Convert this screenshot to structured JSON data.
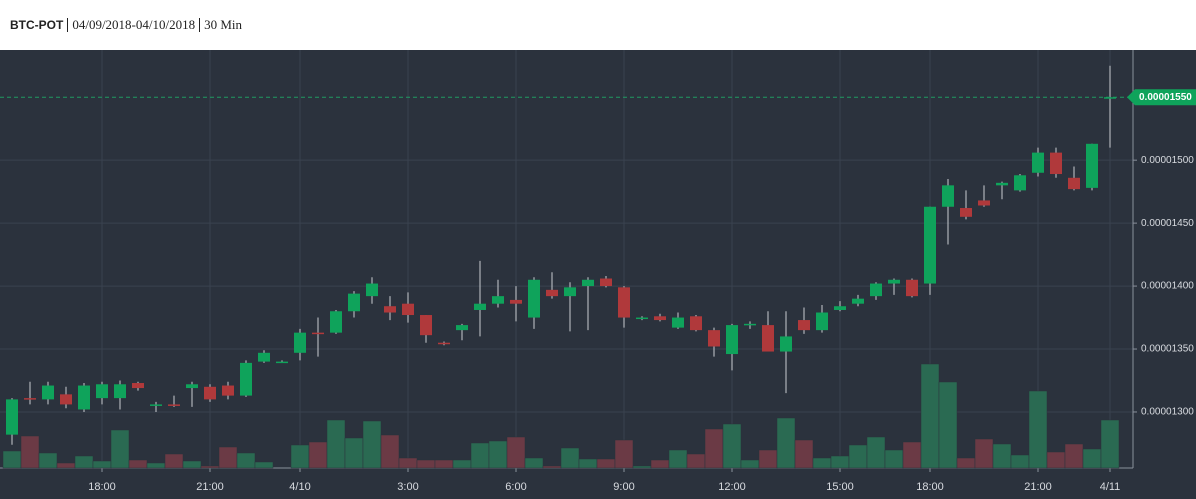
{
  "header": {
    "symbol": "BTC-POT",
    "date_range": "04/09/2018-04/10/2018",
    "interval": "30 Min"
  },
  "chart_data": {
    "type": "candlestick",
    "categories": [
      null,
      null,
      null,
      null,
      null,
      "18:00",
      null,
      null,
      null,
      null,
      null,
      "21:00",
      null,
      null,
      null,
      null,
      "4/10",
      null,
      null,
      null,
      null,
      null,
      "3:00",
      null,
      null,
      null,
      null,
      null,
      "6:00",
      null,
      null,
      null,
      null,
      null,
      "9:00",
      null,
      null,
      null,
      null,
      null,
      "12:00",
      null,
      null,
      null,
      null,
      null,
      "15:00",
      null,
      null,
      null,
      null,
      "18:00",
      null,
      null,
      null,
      null,
      null,
      "21:00",
      null,
      null,
      null,
      "4/11"
    ],
    "open": [
      1.282e-05,
      1.311e-05,
      1.31e-05,
      1.314e-05,
      1.302e-05,
      1.311e-05,
      1.311e-05,
      1.323e-05,
      1.305e-05,
      1.306e-05,
      1.319e-05,
      1.32e-05,
      1.321e-05,
      1.313e-05,
      1.34e-05,
      1.34e-05,
      1.347e-05,
      1.363e-05,
      1.363e-05,
      1.38e-05,
      1.392e-05,
      1.384e-05,
      1.386e-05,
      1.377e-05,
      1.355e-05,
      1.365e-05,
      1.381e-05,
      1.386e-05,
      1.389e-05,
      1.375e-05,
      1.397e-05,
      1.392e-05,
      1.4e-05,
      1.406e-05,
      1.399e-05,
      1.374e-05,
      1.376e-05,
      1.367e-05,
      1.376e-05,
      1.365e-05,
      1.346e-05,
      1.369e-05,
      1.369e-05,
      1.348e-05,
      1.373e-05,
      1.365e-05,
      1.381e-05,
      1.386e-05,
      1.392e-05,
      1.402e-05,
      1.405e-05,
      1.402e-05,
      1.463e-05,
      1.462e-05,
      1.468e-05,
      1.48e-05,
      1.476e-05,
      1.49e-05,
      1.506e-05,
      1.486e-05,
      1.478e-05,
      1.549e-05
    ],
    "high": [
      1.311e-05,
      1.324e-05,
      1.324e-05,
      1.32e-05,
      1.323e-05,
      1.324e-05,
      1.325e-05,
      1.324e-05,
      1.308e-05,
      1.313e-05,
      1.324e-05,
      1.322e-05,
      1.324e-05,
      1.341e-05,
      1.349e-05,
      1.341e-05,
      1.366e-05,
      1.375e-05,
      1.381e-05,
      1.396e-05,
      1.407e-05,
      1.392e-05,
      1.395e-05,
      1.377e-05,
      1.356e-05,
      1.37e-05,
      1.42e-05,
      1.405e-05,
      1.4e-05,
      1.407e-05,
      1.411e-05,
      1.403e-05,
      1.407e-05,
      1.408e-05,
      1.4e-05,
      1.376e-05,
      1.378e-05,
      1.379e-05,
      1.377e-05,
      1.367e-05,
      1.37e-05,
      1.372e-05,
      1.38e-05,
      1.38e-05,
      1.383e-05,
      1.385e-05,
      1.388e-05,
      1.393e-05,
      1.403e-05,
      1.406e-05,
      1.406e-05,
      1.463e-05,
      1.485e-05,
      1.476e-05,
      1.48e-05,
      1.483e-05,
      1.489e-05,
      1.51e-05,
      1.51e-05,
      1.495e-05,
      1.513e-05,
      1.575e-05
    ],
    "low": [
      1.274e-05,
      1.306e-05,
      1.306e-05,
      1.303e-05,
      1.3e-05,
      1.306e-05,
      1.302e-05,
      1.317e-05,
      1.3e-05,
      1.304e-05,
      1.304e-05,
      1.308e-05,
      1.31e-05,
      1.312e-05,
      1.339e-05,
      1.339e-05,
      1.341e-05,
      1.344e-05,
      1.362e-05,
      1.375e-05,
      1.386e-05,
      1.373e-05,
      1.371e-05,
      1.355e-05,
      1.353e-05,
      1.357e-05,
      1.36e-05,
      1.383e-05,
      1.372e-05,
      1.366e-05,
      1.39e-05,
      1.364e-05,
      1.365e-05,
      1.399e-05,
      1.367e-05,
      1.373e-05,
      1.372e-05,
      1.366e-05,
      1.364e-05,
      1.344e-05,
      1.333e-05,
      1.366e-05,
      1.348e-05,
      1.315e-05,
      1.362e-05,
      1.363e-05,
      1.38e-05,
      1.384e-05,
      1.389e-05,
      1.393e-05,
      1.391e-05,
      1.393e-05,
      1.433e-05,
      1.453e-05,
      1.463e-05,
      1.469e-05,
      1.475e-05,
      1.487e-05,
      1.486e-05,
      1.476e-05,
      1.476e-05,
      1.51e-05
    ],
    "close": [
      1.31e-05,
      1.31e-05,
      1.321e-05,
      1.306e-05,
      1.321e-05,
      1.322e-05,
      1.322e-05,
      1.319e-05,
      1.306e-05,
      1.305e-05,
      1.322e-05,
      1.31e-05,
      1.313e-05,
      1.339e-05,
      1.347e-05,
      1.34e-05,
      1.363e-05,
      1.362e-05,
      1.38e-05,
      1.394e-05,
      1.402e-05,
      1.379e-05,
      1.377e-05,
      1.361e-05,
      1.354e-05,
      1.369e-05,
      1.386e-05,
      1.392e-05,
      1.386e-05,
      1.405e-05,
      1.392e-05,
      1.399e-05,
      1.405e-05,
      1.4e-05,
      1.375e-05,
      1.375e-05,
      1.373e-05,
      1.375e-05,
      1.365e-05,
      1.352e-05,
      1.369e-05,
      1.37e-05,
      1.348e-05,
      1.36e-05,
      1.365e-05,
      1.379e-05,
      1.384e-05,
      1.39e-05,
      1.402e-05,
      1.405e-05,
      1.392e-05,
      1.463e-05,
      1.48e-05,
      1.455e-05,
      1.464e-05,
      1.482e-05,
      1.488e-05,
      1.506e-05,
      1.489e-05,
      1.477e-05,
      1.513e-05,
      1.55e-05
    ],
    "volume": [
      17,
      32,
      15,
      5,
      12,
      7,
      38,
      8,
      5,
      14,
      7,
      2,
      21,
      15,
      6,
      0,
      23,
      26,
      48,
      30,
      47,
      33,
      10,
      8,
      8,
      8,
      25,
      27,
      31,
      10,
      2,
      20,
      9,
      9,
      28,
      2,
      8,
      18,
      14,
      39,
      44,
      8,
      18,
      50,
      28,
      10,
      12,
      23,
      31,
      18,
      26,
      104,
      86,
      10,
      29,
      24,
      13,
      77,
      16,
      24,
      19,
      48
    ],
    "ylim": [
      1.2555e-05,
      1.5875e-05
    ],
    "yticks": [
      {
        "value": 1.3e-05,
        "label": "0.00001300"
      },
      {
        "value": 1.35e-05,
        "label": "0.00001350"
      },
      {
        "value": 1.4e-05,
        "label": "0.00001400"
      },
      {
        "value": 1.45e-05,
        "label": "0.00001450"
      },
      {
        "value": 1.5e-05,
        "label": "0.00001500"
      }
    ],
    "last_price": {
      "value": 1.55e-05,
      "label": "0.00001550"
    },
    "up_color": "#0fa35b",
    "down_color": "#b0393b",
    "volume_up_color": "#2a6a52",
    "volume_down_color": "#6b3a45",
    "grid": true
  }
}
